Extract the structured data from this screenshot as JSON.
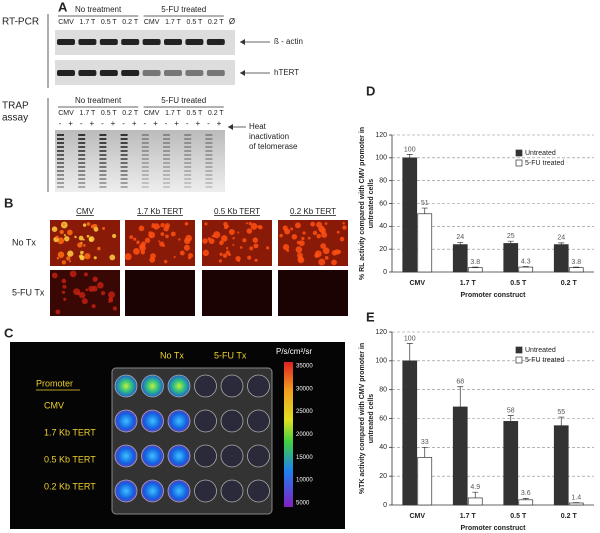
{
  "panels": {
    "A": {
      "label": "A",
      "rt_pcr": "RT-PCR",
      "trap": [
        "TRAP",
        "assay"
      ],
      "groups": [
        "No treatment",
        "5-FU treated"
      ],
      "lanes": [
        "CMV",
        "1.7 T",
        "0.5 T",
        "0.2 T",
        "CMV",
        "1.7 T",
        "0.5 T",
        "0.2 T"
      ],
      "blank": "Ø",
      "actin": "ß - actin",
      "htert": "hTERT",
      "trap_groups": [
        "No treatment",
        "5-FU treated"
      ],
      "trap_lanes": [
        "CMV",
        "1.7 T",
        "0.5 T",
        "0.2 T",
        "CMV",
        "1.7 T",
        "0.5 T",
        "0.2 T"
      ],
      "signs": [
        "-",
        "+",
        "-",
        "+",
        "-",
        "+",
        "-",
        "+",
        "-",
        "+",
        "-",
        "+",
        "-",
        "+",
        "-",
        "+"
      ],
      "heat": [
        "Heat",
        "inactivation",
        "of telomerase"
      ]
    },
    "B": {
      "label": "B",
      "columns": [
        "CMV",
        "1.7 Kb TERT",
        "0.5 Kb TERT",
        "0.2 Kb TERT"
      ],
      "rows": [
        "No Tx",
        "5-FU Tx"
      ]
    },
    "C": {
      "label": "C",
      "groups": [
        "No Tx",
        "5-FU Tx"
      ],
      "unit": "P/s/cm²/sr",
      "promoter": "Promoter",
      "rows": [
        "CMV",
        "1.7 Kb TERT",
        "0.5 Kb TERT",
        "0.2 Kb TERT"
      ],
      "scale": [
        "35000",
        "30000",
        "25000",
        "20000",
        "15000",
        "10000",
        "5000"
      ]
    }
  },
  "chart_data": [
    {
      "type": "bar",
      "label": "D",
      "ylabel": [
        "% RL activity compared with CMV promoter in",
        "untreated cells"
      ],
      "xlabel": "Promoter construct",
      "categories": [
        "CMV",
        "1.7 T",
        "0.5 T",
        "0.2 T"
      ],
      "series": [
        {
          "name": "Untreated",
          "color": "#333333",
          "values": [
            100,
            24,
            25,
            24
          ],
          "errors": [
            3,
            2,
            2,
            1.5
          ]
        },
        {
          "name": "5-FU treated",
          "color": "#ffffff",
          "values": [
            51,
            3.8,
            4.3,
            3.8
          ],
          "errors": [
            5,
            0.5,
            0.5,
            0.5
          ]
        }
      ],
      "ylim": [
        0,
        120
      ],
      "yticks": [
        0,
        20,
        40,
        60,
        80,
        100,
        120
      ],
      "grid": true,
      "legend": "top-right"
    },
    {
      "type": "bar",
      "label": "E",
      "ylabel": [
        "%TK activity compared with CMV promoter in",
        "untreated cells"
      ],
      "xlabel": "Promoter construct",
      "categories": [
        "CMV",
        "1.7 T",
        "0.5 T",
        "0.2 T"
      ],
      "series": [
        {
          "name": "Untreated",
          "color": "#333333",
          "values": [
            100,
            68,
            58,
            55
          ],
          "errors": [
            12,
            14,
            4,
            6
          ]
        },
        {
          "name": "5-FU treated",
          "color": "#ffffff",
          "values": [
            33,
            4.9,
            3.6,
            1.4
          ],
          "errors": [
            7,
            4,
            1,
            0.3
          ]
        }
      ],
      "ylim": [
        0,
        120
      ],
      "yticks": [
        0,
        20,
        40,
        60,
        80,
        100,
        120
      ],
      "grid": true,
      "legend": "top-right"
    }
  ]
}
